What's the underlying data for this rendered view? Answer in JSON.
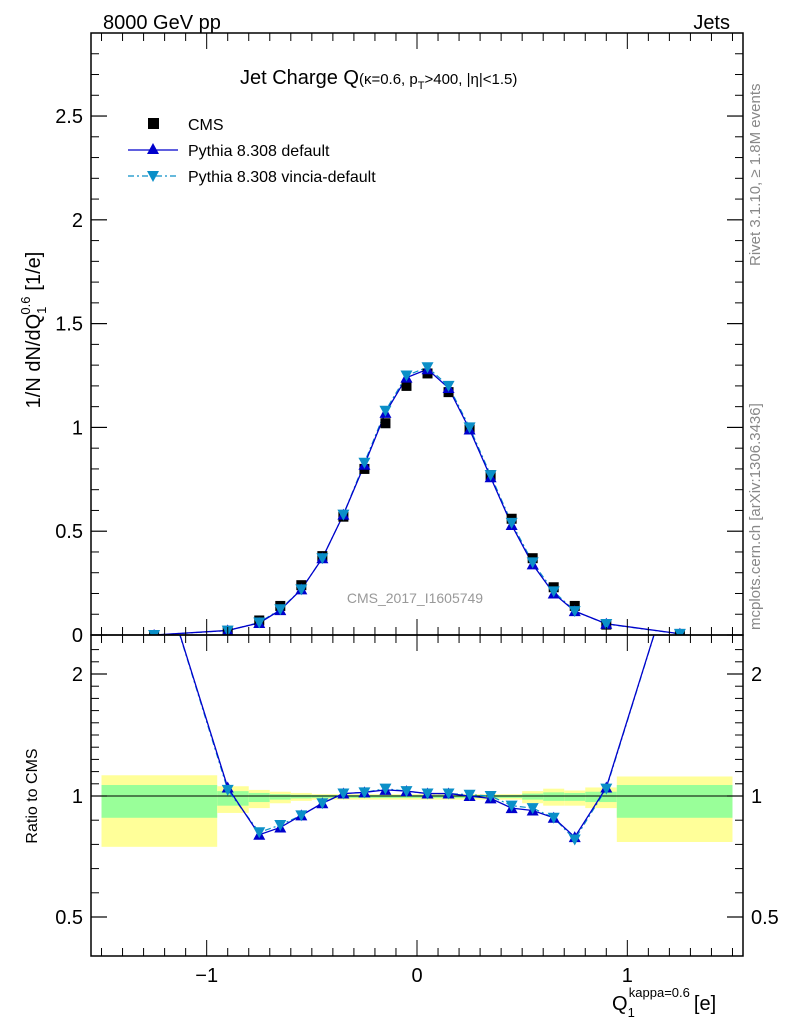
{
  "header": {
    "left": "8000 GeV pp",
    "right": "Jets"
  },
  "side_labels": {
    "rivet": "Rivet 3.1.10, ≥ 1.8M events",
    "mcplots": "mcplots.cern.ch [arXiv:1306.3436]"
  },
  "colors": {
    "data": "#000000",
    "pythia_default": "#0000cc",
    "vincia_default": "#0b8fc8",
    "band_inner": "#99ff99",
    "band_outer": "#ffff99"
  },
  "chart_data": [
    {
      "type": "line",
      "panel": "main",
      "title": "Jet Charge Q(κ=0.6, p_T>400, |η|<1.5)",
      "title_parts": {
        "main": "Jet Charge Q",
        "sub": "(κ=0.6, p",
        "sub_T": "T",
        "sub_rest": ">400, |η|<1.5)"
      },
      "ylabel": "1/N dN/dQ",
      "ylabel_parts": {
        "main": "1/N dN/dQ",
        "sub": "1",
        "sup": "0.6",
        "unit": "[1/e]"
      },
      "watermark": "CMS_2017_I1605749",
      "xlim": [
        -1.55,
        1.55
      ],
      "ylim": [
        0,
        2.9
      ],
      "yticks": [
        0,
        0.5,
        1,
        1.5,
        2,
        2.5
      ],
      "ytick_labels": [
        "0",
        "0.5",
        "1",
        "1.5",
        "2",
        "2.5"
      ],
      "legend_position": "top-left",
      "series": [
        {
          "name": "CMS",
          "marker": "square",
          "x": [
            -1.25,
            -0.9,
            -0.75,
            -0.65,
            -0.55,
            -0.45,
            -0.35,
            -0.25,
            -0.15,
            -0.05,
            0.05,
            0.15,
            0.25,
            0.35,
            0.45,
            0.55,
            0.65,
            0.75,
            0.9,
            1.25
          ],
          "y": [
            0.0,
            0.02,
            0.07,
            0.14,
            0.24,
            0.38,
            0.57,
            0.8,
            1.02,
            1.2,
            1.26,
            1.17,
            0.99,
            0.77,
            0.56,
            0.37,
            0.23,
            0.14,
            0.05,
            0.005
          ]
        },
        {
          "name": "Pythia 8.308 default",
          "marker": "triangle-up",
          "x": [
            -1.25,
            -0.9,
            -0.75,
            -0.65,
            -0.55,
            -0.45,
            -0.35,
            -0.25,
            -0.15,
            -0.05,
            0.05,
            0.15,
            0.25,
            0.35,
            0.45,
            0.55,
            0.65,
            0.75,
            0.9,
            1.25
          ],
          "y": [
            0.0,
            0.022,
            0.058,
            0.12,
            0.22,
            0.37,
            0.58,
            0.82,
            1.07,
            1.24,
            1.28,
            1.19,
            0.99,
            0.76,
            0.53,
            0.34,
            0.2,
            0.115,
            0.054,
            0.006
          ]
        },
        {
          "name": "Pythia 8.308 vincia-default",
          "marker": "triangle-down",
          "x": [
            -1.25,
            -0.9,
            -0.75,
            -0.65,
            -0.55,
            -0.45,
            -0.35,
            -0.25,
            -0.15,
            -0.05,
            0.05,
            0.15,
            0.25,
            0.35,
            0.45,
            0.55,
            0.65,
            0.75,
            0.9,
            1.25
          ],
          "y": [
            0.0,
            0.021,
            0.06,
            0.124,
            0.22,
            0.37,
            0.58,
            0.83,
            1.08,
            1.25,
            1.29,
            1.2,
            1.0,
            0.77,
            0.54,
            0.35,
            0.21,
            0.115,
            0.053,
            0.0055
          ]
        }
      ]
    },
    {
      "type": "line",
      "panel": "ratio",
      "ylabel": "Ratio to CMS",
      "xlabel_parts": {
        "main": "Q",
        "sub": "1",
        "sup": "kappa=0.6",
        "unit": "[e]"
      },
      "xlim": [
        -1.55,
        1.55
      ],
      "ylim": [
        0.35,
        2.25
      ],
      "yticks": [
        0.5,
        1,
        2
      ],
      "ytick_labels": [
        "0.5",
        "1",
        "2"
      ],
      "xticks": [
        -1,
        0,
        1
      ],
      "xtick_labels": [
        "−1",
        "0",
        "1"
      ],
      "bands": [
        {
          "x0": -1.5,
          "x1": -0.95,
          "inner": [
            0.91,
            1.09
          ],
          "outer": [
            0.79,
            1.17
          ]
        },
        {
          "x0": -0.95,
          "x1": -0.8,
          "inner": [
            0.96,
            1.04
          ],
          "outer": [
            0.93,
            1.08
          ]
        },
        {
          "x0": -0.8,
          "x1": -0.7,
          "inner": [
            0.975,
            1.025
          ],
          "outer": [
            0.95,
            1.05
          ]
        },
        {
          "x0": -0.7,
          "x1": -0.6,
          "inner": [
            0.985,
            1.015
          ],
          "outer": [
            0.97,
            1.035
          ]
        },
        {
          "x0": -0.6,
          "x1": -0.5,
          "inner": [
            0.99,
            1.01
          ],
          "outer": [
            0.98,
            1.025
          ]
        },
        {
          "x0": -0.5,
          "x1": 0.5,
          "inner": [
            0.992,
            1.008
          ],
          "outer": [
            0.985,
            1.015
          ]
        },
        {
          "x0": 0.5,
          "x1": 0.6,
          "inner": [
            0.985,
            1.02
          ],
          "outer": [
            0.97,
            1.04
          ]
        },
        {
          "x0": 0.6,
          "x1": 0.7,
          "inner": [
            0.98,
            1.03
          ],
          "outer": [
            0.96,
            1.06
          ]
        },
        {
          "x0": 0.7,
          "x1": 0.8,
          "inner": [
            0.98,
            1.025
          ],
          "outer": [
            0.96,
            1.045
          ]
        },
        {
          "x0": 0.8,
          "x1": 0.95,
          "inner": [
            0.975,
            1.035
          ],
          "outer": [
            0.95,
            1.07
          ]
        },
        {
          "x0": 0.95,
          "x1": 1.5,
          "inner": [
            0.91,
            1.09
          ],
          "outer": [
            0.81,
            1.16
          ]
        }
      ],
      "series": [
        {
          "name": "Pythia 8.308 default",
          "x": [
            -1.25,
            -0.9,
            -0.75,
            -0.65,
            -0.55,
            -0.45,
            -0.35,
            -0.25,
            -0.15,
            -0.05,
            0.05,
            0.15,
            0.25,
            0.35,
            0.45,
            0.55,
            0.65,
            0.75,
            0.9,
            1.25
          ],
          "y": [
            3.0,
            1.07,
            0.84,
            0.87,
            0.92,
            0.97,
            1.02,
            1.03,
            1.05,
            1.04,
            1.02,
            1.02,
            1.0,
            0.99,
            0.95,
            0.94,
            0.91,
            0.83,
            1.07,
            3.0
          ]
        },
        {
          "name": "Pythia 8.308 vincia-default",
          "x": [
            -1.25,
            -0.9,
            -0.75,
            -0.65,
            -0.55,
            -0.45,
            -0.35,
            -0.25,
            -0.15,
            -0.05,
            0.05,
            0.15,
            0.25,
            0.35,
            0.45,
            0.55,
            0.65,
            0.75,
            0.9,
            1.25
          ],
          "y": [
            3.0,
            1.05,
            0.85,
            0.88,
            0.92,
            0.97,
            1.02,
            1.03,
            1.06,
            1.04,
            1.02,
            1.02,
            1.01,
            1.0,
            0.96,
            0.95,
            0.91,
            0.82,
            1.06,
            3.0
          ]
        }
      ]
    }
  ]
}
